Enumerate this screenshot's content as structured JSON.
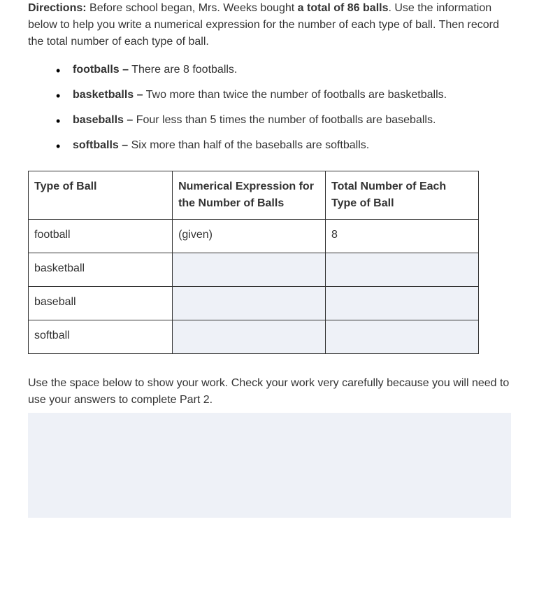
{
  "directions": {
    "label": "Directions:",
    "text_before": " Before school began, Mrs. Weeks bought ",
    "highlight": "a total of 86 balls",
    "text_after": ". Use the information below to help you write a numerical expression for the number of each type of ball. Then record the total number of each type of ball."
  },
  "bullets": [
    {
      "term": "footballs –",
      "desc": " There are 8 footballs."
    },
    {
      "term": "basketballs –",
      "desc": " Two more than twice the number of footballs are basketballs."
    },
    {
      "term": "baseballs –",
      "desc": " Four less than 5 times the number of footballs are baseballs."
    },
    {
      "term": "softballs –",
      "desc": " Six more than half of the baseballs are softballs."
    }
  ],
  "table": {
    "headers": {
      "col1": "Type of Ball",
      "col2": "Numerical Expression for the Number of Balls",
      "col3": "Total Number of Each Type of Ball"
    },
    "rows": [
      {
        "type": "football",
        "expr": "(given)",
        "total": "8",
        "fill_expr": false,
        "fill_total": false
      },
      {
        "type": "basketball",
        "expr": "",
        "total": "",
        "fill_expr": true,
        "fill_total": true
      },
      {
        "type": "baseball",
        "expr": "",
        "total": "",
        "fill_expr": true,
        "fill_total": true
      },
      {
        "type": "softball",
        "expr": "",
        "total": "",
        "fill_expr": true,
        "fill_total": true
      }
    ]
  },
  "work_text": "Use the space below to show your work. Check your work very carefully because you will need to use your answers to complete Part 2.",
  "colors": {
    "text": "#333333",
    "fill_bg": "#eef1f7",
    "border": "#333333",
    "page_bg": "#ffffff"
  }
}
